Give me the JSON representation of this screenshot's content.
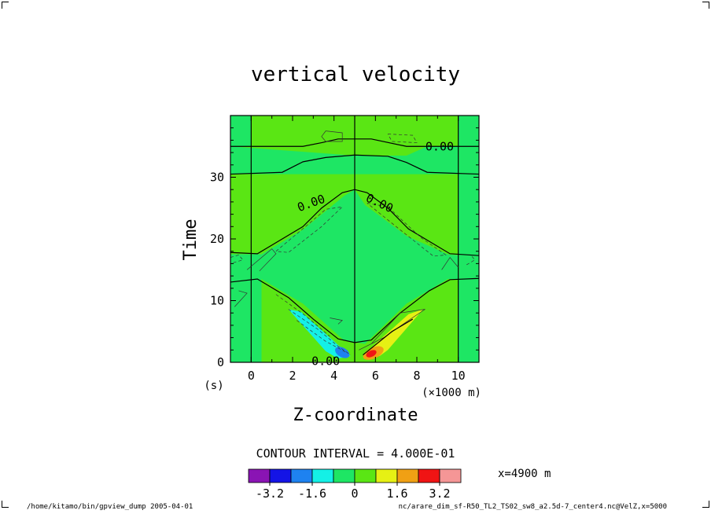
{
  "chart_data": {
    "type": "heatmap",
    "title": "vertical velocity",
    "xlabel": "Z-coordinate",
    "ylabel": "Time",
    "x_unit_label": "(×1000 m)",
    "y_unit_label": "(s)",
    "xlim": [
      -1,
      11
    ],
    "ylim": [
      0,
      40
    ],
    "x_ticks": [
      "0",
      "2",
      "4",
      "6",
      "8",
      "10"
    ],
    "x_tick_values": [
      0,
      2,
      4,
      6,
      8,
      10
    ],
    "y_ticks": [
      "0",
      "10",
      "20",
      "30"
    ],
    "y_tick_values": [
      0,
      10,
      20,
      30
    ],
    "contour_interval_label": "CONTOUR INTERVAL = 4.000E-01",
    "slice_label": "x=4900  m",
    "contour_labels": [
      {
        "text": "0.00",
        "x": 9.1,
        "y": 35.0
      },
      {
        "text": "0.00",
        "x": 2.9,
        "y": 25.8
      },
      {
        "text": "0.00",
        "x": 6.2,
        "y": 25.8
      },
      {
        "text": "0.00",
        "x": 3.6,
        "y": 0.2
      }
    ],
    "colorbar": {
      "colors": [
        "#8a14b4",
        "#1414e6",
        "#1e82f0",
        "#14f0e6",
        "#1ee664",
        "#5ae614",
        "#e6f014",
        "#f0a014",
        "#f01414",
        "#f59696"
      ],
      "tick_labels": [
        "-3.2",
        "-1.6",
        "0",
        "1.6",
        "3.2"
      ],
      "tick_positions": [
        1,
        3,
        5,
        7,
        9
      ]
    },
    "field_colors": {
      "background_positive": "#5ae614",
      "near_zero_negative": "#1ee664",
      "negative_moderate": "#14f0e6",
      "negative_strong": "#1e82f0",
      "positive_moderate": "#e6f014",
      "positive_strong": "#f0a014",
      "positive_max": "#f01414"
    }
  },
  "footer": {
    "left": "/home/kitamo/bin/gpview_dump  2005-04-01",
    "right": "nc/arare_dim_sf-R50_TL2_TS02_sw8_a2.5d-7_center4.nc@VelZ,x=5000"
  }
}
